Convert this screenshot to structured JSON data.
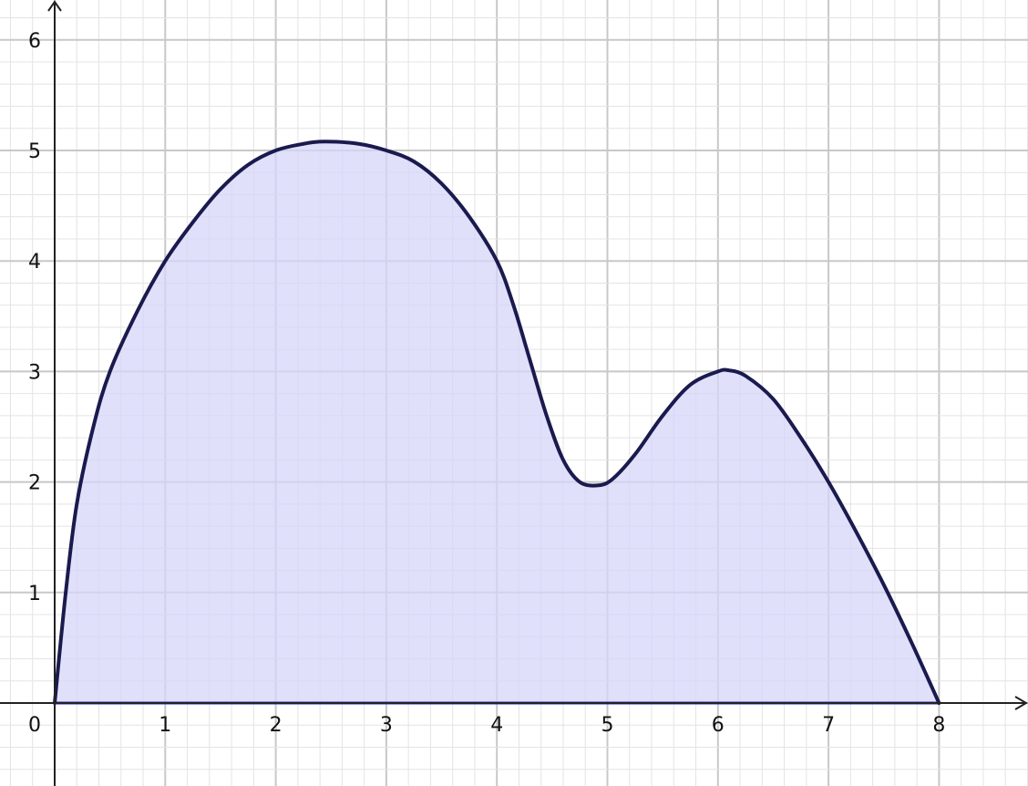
{
  "chart_data": {
    "type": "area",
    "title": "",
    "xlabel": "",
    "ylabel": "",
    "xlim": [
      0,
      8
    ],
    "ylim": [
      0,
      6
    ],
    "grid": true,
    "x_ticks": [
      "0",
      "1",
      "2",
      "3",
      "4",
      "5",
      "6",
      "7",
      "8"
    ],
    "y_ticks": [
      "1",
      "2",
      "3",
      "4",
      "5",
      "6"
    ],
    "series": [
      {
        "points": [
          [
            0,
            0
          ],
          [
            0.1,
            1.0
          ],
          [
            0.2,
            1.8
          ],
          [
            0.35,
            2.5
          ],
          [
            0.5,
            3.0
          ],
          [
            0.75,
            3.55
          ],
          [
            1,
            4.0
          ],
          [
            1.25,
            4.35
          ],
          [
            1.5,
            4.65
          ],
          [
            1.75,
            4.87
          ],
          [
            2,
            5.0
          ],
          [
            2.25,
            5.06
          ],
          [
            2.45,
            5.08
          ],
          [
            2.75,
            5.06
          ],
          [
            3,
            5.0
          ],
          [
            3.25,
            4.9
          ],
          [
            3.5,
            4.7
          ],
          [
            3.75,
            4.4
          ],
          [
            4,
            4.0
          ],
          [
            4.15,
            3.6
          ],
          [
            4.3,
            3.1
          ],
          [
            4.45,
            2.6
          ],
          [
            4.6,
            2.2
          ],
          [
            4.75,
            2.0
          ],
          [
            4.92,
            1.97
          ],
          [
            5.05,
            2.03
          ],
          [
            5.25,
            2.25
          ],
          [
            5.5,
            2.6
          ],
          [
            5.75,
            2.88
          ],
          [
            6,
            3.0
          ],
          [
            6.1,
            3.01
          ],
          [
            6.25,
            2.96
          ],
          [
            6.5,
            2.75
          ],
          [
            6.75,
            2.4
          ],
          [
            7,
            2.0
          ],
          [
            7.25,
            1.55
          ],
          [
            7.5,
            1.07
          ],
          [
            7.75,
            0.55
          ],
          [
            8,
            0
          ]
        ],
        "line_color": "#1a1a4e",
        "fill_color": "#d6d6fa"
      }
    ],
    "baseline_color": "#2a2ae0"
  }
}
